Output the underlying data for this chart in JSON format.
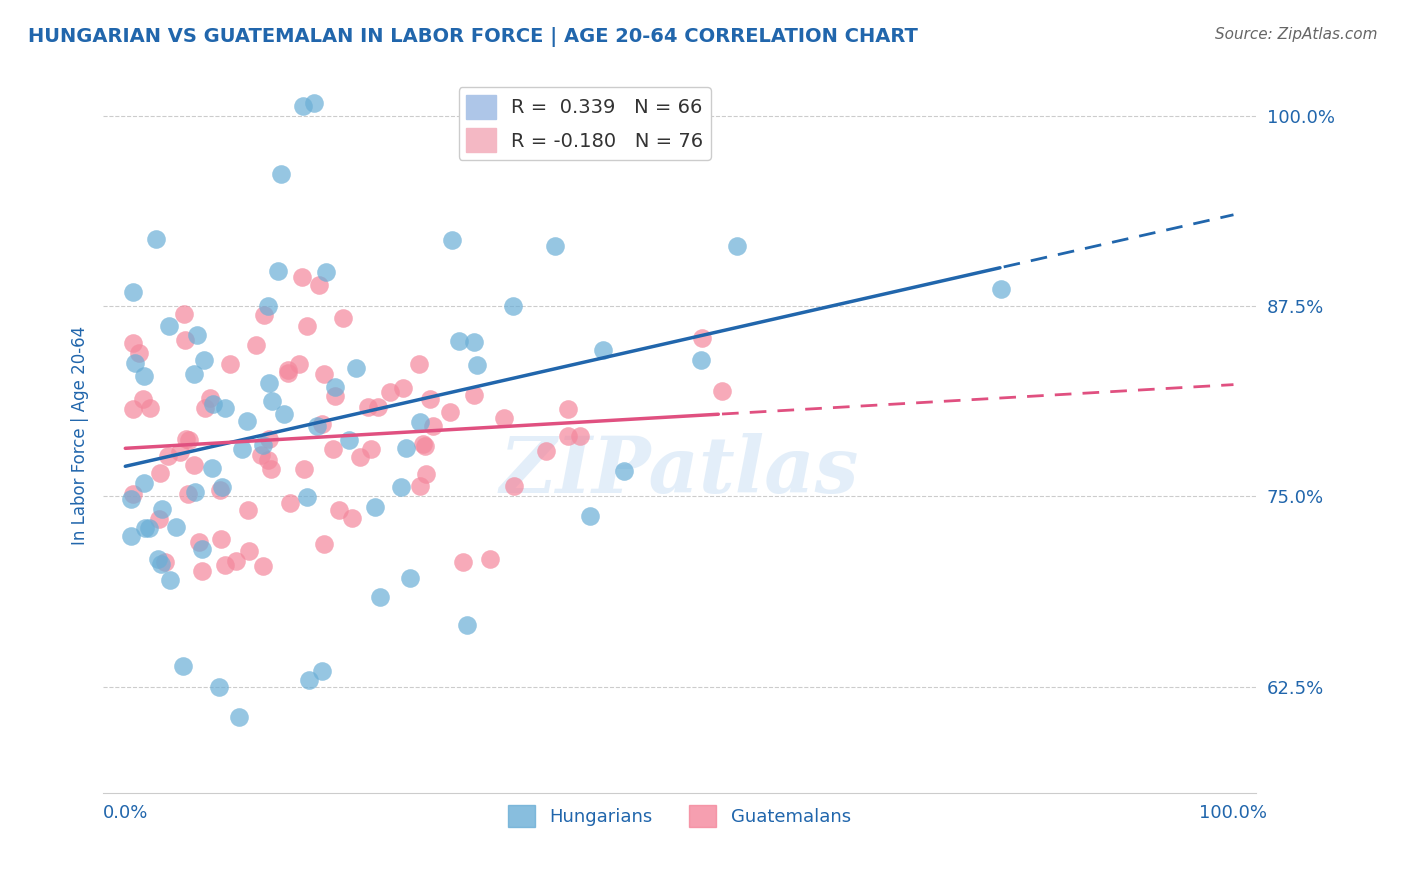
{
  "title": "HUNGARIAN VS GUATEMALAN IN LABOR FORCE | AGE 20-64 CORRELATION CHART",
  "source_text": "Source: ZipAtlas.com",
  "ylabel": "In Labor Force | Age 20-64",
  "xlim": [
    -0.02,
    1.02
  ],
  "ylim": [
    0.555,
    1.025
  ],
  "yticks": [
    0.625,
    0.75,
    0.875,
    1.0
  ],
  "ytick_labels": [
    "62.5%",
    "75.0%",
    "87.5%",
    "100.0%"
  ],
  "watermark": "ZIPatlas",
  "blue_color": "#6aaed6",
  "pink_color": "#f4879c",
  "blue_line_color": "#2166ac",
  "pink_line_color": "#e05080",
  "title_color": "#2166ac",
  "axis_label_color": "#2166ac",
  "tick_label_color": "#2166ac",
  "grid_color": "#cccccc",
  "R_hungarian": 0.339,
  "R_guatemalan": -0.18,
  "N_hungarian": 66,
  "N_guatemalan": 76
}
